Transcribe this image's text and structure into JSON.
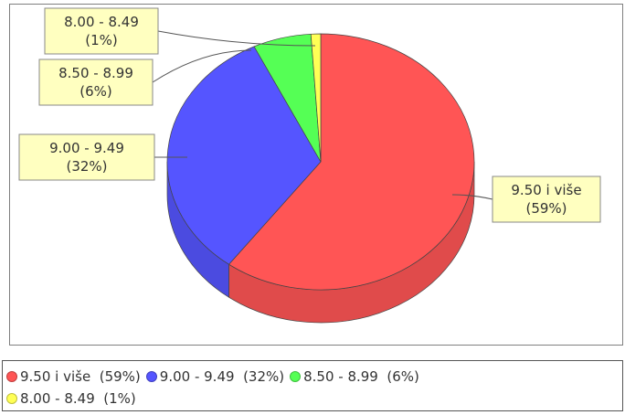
{
  "chart_data": {
    "type": "pie",
    "style": "3d",
    "legend_position": "bottom",
    "slices": [
      {
        "label": "9.50 i više",
        "percent_label": "(59%)",
        "value": 59,
        "color": "#ff5555"
      },
      {
        "label": "9.00 - 9.49",
        "percent_label": "(32%)",
        "value": 32,
        "color": "#5555ff"
      },
      {
        "label": "8.50 - 8.99",
        "percent_label": "(6%)",
        "value": 6,
        "color": "#55ff55"
      },
      {
        "label": "8.00 - 8.49",
        "percent_label": "(1%)",
        "value": 1,
        "color": "#ffff55"
      }
    ],
    "legend": [
      {
        "text": "9.50 i više  (59%)",
        "color": "#ff5555"
      },
      {
        "text": "9.00 - 9.49  (32%)",
        "color": "#5555ff"
      },
      {
        "text": "8.50 - 8.99  (6%)",
        "color": "#55ff55"
      },
      {
        "text": "8.00 - 8.49  (1%)",
        "color": "#ffff55"
      }
    ],
    "label_box_color": "#ffffc0"
  }
}
